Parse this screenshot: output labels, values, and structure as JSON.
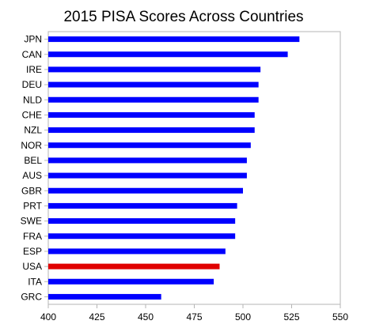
{
  "chart_data": {
    "type": "bar",
    "orientation": "horizontal",
    "title": "2015 PISA Scores Across Countries",
    "xlabel": "",
    "ylabel": "",
    "xlim": [
      400,
      550
    ],
    "xticks": [
      400,
      425,
      450,
      475,
      500,
      525,
      550
    ],
    "grid": false,
    "legend": "none",
    "categories": [
      "JPN",
      "CAN",
      "IRE",
      "DEU",
      "NLD",
      "CHE",
      "NZL",
      "NOR",
      "BEL",
      "AUS",
      "GBR",
      "PRT",
      "SWE",
      "FRA",
      "ESP",
      "USA",
      "ITA",
      "GRC"
    ],
    "values": [
      529,
      523,
      509,
      508,
      508,
      506,
      506,
      504,
      502,
      502,
      500,
      497,
      496,
      496,
      491,
      488,
      485,
      458
    ],
    "colors": {
      "default": "#0000ff",
      "highlight": "#e00000"
    },
    "highlight_category": "USA"
  }
}
